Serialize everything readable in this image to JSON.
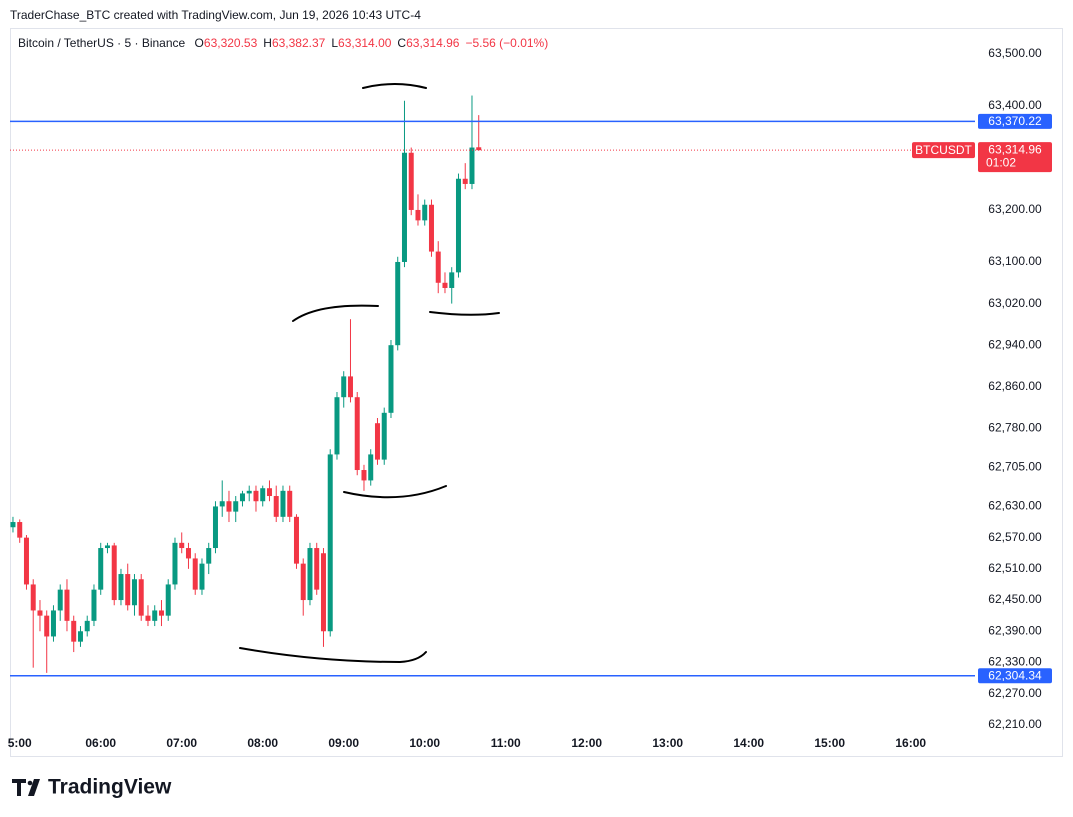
{
  "header": {
    "credit": "TraderChase_BTC created with TradingView.com, Jun 19, 2026 10:43 UTC-4"
  },
  "footer": {
    "brand": "TradingView"
  },
  "chart_data": {
    "type": "candlestick",
    "legend": {
      "symbol": "Bitcoin / TetherUS · 5 · Binance",
      "fields": [
        {
          "key": "O",
          "value": "63,320.53"
        },
        {
          "key": "H",
          "value": "63,382.37"
        },
        {
          "key": "L",
          "value": "63,314.00"
        },
        {
          "key": "C",
          "value": "63,314.96"
        }
      ],
      "change": "−5.56 (−0.01%)"
    },
    "up_color": "#089981",
    "down_color": "#f23645",
    "grid": false,
    "open": [
      62590,
      62600,
      62570,
      62480,
      62430,
      62420,
      62380,
      62430,
      62470,
      62410,
      62370,
      62390,
      62410,
      62470,
      62550,
      62555,
      62450,
      62500,
      62440,
      62490,
      62420,
      62410,
      62430,
      62420,
      62480,
      62560,
      62550,
      62530,
      62470,
      62520,
      62550,
      62630,
      62640,
      62620,
      62640,
      62655,
      62660,
      62640,
      62665,
      62650,
      62610,
      62660,
      62610,
      62520,
      62450,
      62550,
      62540,
      62390,
      62730,
      62840,
      62880,
      62840,
      62700,
      62680,
      62790,
      62720,
      62810,
      62940,
      63100,
      63310,
      63200,
      63180,
      63210,
      63120,
      63060,
      63050,
      63080,
      63260,
      63250,
      63320.53
    ],
    "high": [
      62610,
      62605,
      62575,
      62490,
      62450,
      62430,
      62440,
      62480,
      62490,
      62420,
      62400,
      62420,
      62480,
      62560,
      62560,
      62560,
      62510,
      62520,
      62500,
      62500,
      62440,
      62440,
      62450,
      62490,
      62570,
      62580,
      62560,
      62540,
      62530,
      62560,
      62640,
      62680,
      62660,
      62650,
      62660,
      62670,
      62670,
      62670,
      62680,
      62670,
      62670,
      62670,
      62615,
      62530,
      62560,
      62560,
      62550,
      62740,
      62850,
      62890,
      62990,
      62850,
      62710,
      62740,
      62800,
      62820,
      62950,
      63110,
      63410,
      63320,
      63230,
      63220,
      63220,
      63140,
      63080,
      63090,
      63270,
      63290,
      63420,
      63382.37
    ],
    "low": [
      62580,
      62560,
      62470,
      62320,
      62390,
      62310,
      62370,
      62410,
      62390,
      62350,
      62360,
      62380,
      62400,
      62460,
      62540,
      62440,
      62440,
      62430,
      62420,
      62410,
      62400,
      62400,
      62400,
      62410,
      62470,
      62540,
      62510,
      62460,
      62460,
      62500,
      62540,
      62610,
      62600,
      62600,
      62630,
      62640,
      62620,
      62630,
      62640,
      62600,
      62600,
      62600,
      62510,
      62420,
      62440,
      62460,
      62360,
      62380,
      62720,
      62820,
      62830,
      62690,
      62660,
      62670,
      62710,
      62710,
      62800,
      62930,
      63090,
      63190,
      63170,
      63170,
      63110,
      63040,
      63040,
      63020,
      63070,
      63240,
      63240,
      63314.0
    ],
    "close": [
      62600,
      62570,
      62480,
      62430,
      62420,
      62380,
      62430,
      62470,
      62410,
      62370,
      62390,
      62410,
      62470,
      62550,
      62555,
      62450,
      62500,
      62440,
      62490,
      62420,
      62410,
      62430,
      62420,
      62480,
      62560,
      62550,
      62530,
      62470,
      62520,
      62550,
      62630,
      62640,
      62620,
      62640,
      62655,
      62660,
      62640,
      62665,
      62650,
      62610,
      62660,
      62610,
      62520,
      62450,
      62550,
      62470,
      62390,
      62730,
      62840,
      62880,
      62840,
      62700,
      62680,
      62730,
      62720,
      62810,
      62940,
      63100,
      63310,
      63200,
      63180,
      63210,
      63120,
      63060,
      63050,
      63080,
      63260,
      63250,
      63320,
      63314.96
    ],
    "xlim": [
      -0.44,
      142.52
    ],
    "xticks": [
      {
        "value": 1,
        "label": "5:00"
      },
      {
        "value": 13,
        "label": "06:00"
      },
      {
        "value": 25,
        "label": "07:00"
      },
      {
        "value": 37,
        "label": "08:00"
      },
      {
        "value": 49,
        "label": "09:00"
      },
      {
        "value": 61,
        "label": "10:00"
      },
      {
        "value": 73,
        "label": "11:00"
      },
      {
        "value": 85,
        "label": "12:00"
      },
      {
        "value": 97,
        "label": "13:00"
      },
      {
        "value": 109,
        "label": "14:00"
      },
      {
        "value": 121,
        "label": "15:00"
      },
      {
        "value": 133,
        "label": "16:00"
      }
    ],
    "ylim": [
      62204,
      63546
    ],
    "yticks": [
      {
        "value": 63500,
        "label": "63,500.00"
      },
      {
        "value": 63400,
        "label": "63,400.00"
      },
      {
        "value": 63200,
        "label": "63,200.00"
      },
      {
        "value": 63100,
        "label": "63,100.00"
      },
      {
        "value": 63020,
        "label": "63,020.00"
      },
      {
        "value": 62940,
        "label": "62,940.00"
      },
      {
        "value": 62860,
        "label": "62,860.00"
      },
      {
        "value": 62780,
        "label": "62,780.00"
      },
      {
        "value": 62705,
        "label": "62,705.00"
      },
      {
        "value": 62630,
        "label": "62,630.00"
      },
      {
        "value": 62570,
        "label": "62,570.00"
      },
      {
        "value": 62510,
        "label": "62,510.00"
      },
      {
        "value": 62450,
        "label": "62,450.00"
      },
      {
        "value": 62390,
        "label": "62,390.00"
      },
      {
        "value": 62330,
        "label": "62,330.00"
      },
      {
        "value": 62270,
        "label": "62,270.00"
      },
      {
        "value": 62210,
        "label": "62,210.00"
      }
    ],
    "hlines": [
      {
        "value": 63370.22,
        "label": "63,370.22",
        "color": "#2962ff"
      },
      {
        "value": 62304.34,
        "label": "62,304.34",
        "color": "#2962ff"
      }
    ],
    "last_price": {
      "symbol": "BTCUSDT",
      "value": 63314.96,
      "label": "63,314.96",
      "countdown": "01:02"
    }
  }
}
